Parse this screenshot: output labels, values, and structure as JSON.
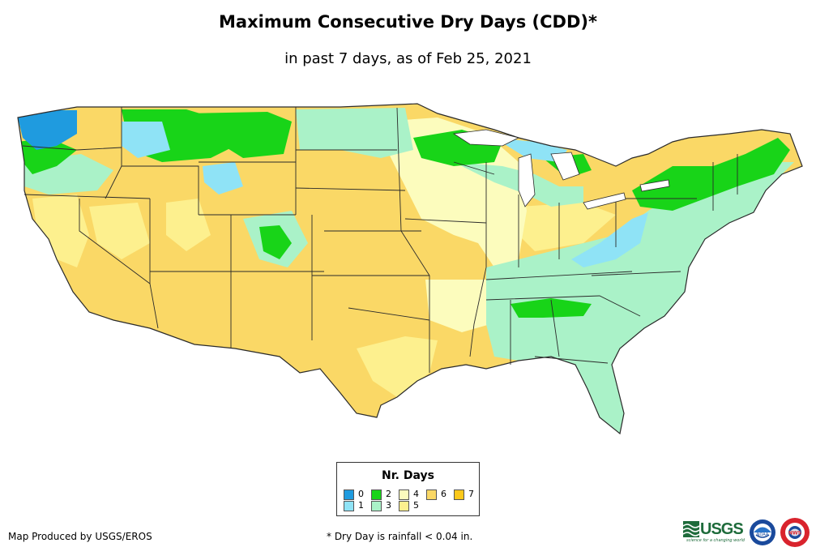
{
  "title": "Maximum Consecutive Dry Days (CDD)*",
  "subtitle": "in past 7 days, as of Feb 25, 2021",
  "legend": {
    "title": "Nr. Days",
    "items": [
      {
        "label": "0",
        "color": "#1f9bdf"
      },
      {
        "label": "1",
        "color": "#8fe3f6"
      },
      {
        "label": "2",
        "color": "#18d418"
      },
      {
        "label": "3",
        "color": "#aaf2c8"
      },
      {
        "label": "4",
        "color": "#fcfcbd"
      },
      {
        "label": "5",
        "color": "#fdf08e"
      },
      {
        "label": "6",
        "color": "#fad866"
      },
      {
        "label": "7",
        "color": "#fbc81a"
      }
    ]
  },
  "credit": "Map Produced by USGS/EROS",
  "footnote": "* Dry Day is rainfall < 0.04 in.",
  "logos": {
    "usgs_word": "USGS",
    "usgs_tagline": "science for a changing world",
    "noaa": "NOAA",
    "nws": "NWS"
  },
  "colors": {
    "base_dry": "#fad866",
    "border": "#2a2a2a"
  }
}
